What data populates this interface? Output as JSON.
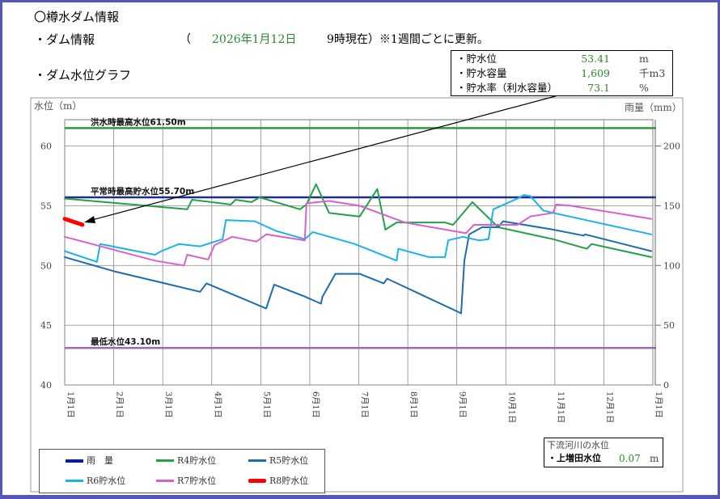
{
  "header": {
    "title": "〇樽水ダム情報",
    "dam_info_label": "・ダム情報",
    "paren_open": "（",
    "date": "2026年1月12日",
    "time_note": "9時現在）※1週間ごとに更新。",
    "graph_label": "・ダム水位グラフ"
  },
  "info_box": {
    "rows": [
      {
        "label": "・貯水位",
        "value": "53.41",
        "unit": "m"
      },
      {
        "label": "・貯水容量",
        "value": "1,609",
        "unit": "千m3"
      },
      {
        "label": "・貯水率（利水容量）",
        "value": "73.1",
        "unit": "%"
      }
    ]
  },
  "downstream": {
    "title": "下流河川の水位",
    "label": "・上増田水位",
    "value": "0.07",
    "unit": "m"
  },
  "chart_data": {
    "type": "line",
    "ylabel_left": "水位（m）",
    "ylabel_right": "雨量（mm）",
    "ylim": [
      40,
      62.2
    ],
    "y_ticks": [
      40,
      45,
      50,
      55,
      60
    ],
    "y2lim": [
      0,
      222
    ],
    "y2_ticks": [
      0,
      50,
      100,
      150,
      200
    ],
    "x_ticks": [
      "1月1日",
      "2月1日",
      "3月1日",
      "4月1日",
      "5月1日",
      "6月1日",
      "7月1日",
      "8月1日",
      "9月1日",
      "10月1日",
      "11月1日",
      "12月1日",
      "1月1日"
    ],
    "grid": true,
    "reference_lines": [
      {
        "label": "洪水時最高水位61.50m",
        "value": 61.5,
        "color": "#2e9a3a"
      },
      {
        "label": "平常時最高貯水位55.70m",
        "value": 55.7,
        "color": "#1f2d8a"
      },
      {
        "label": "最低水位43.10m",
        "value": 43.1,
        "color": "#9a6cb8"
      }
    ],
    "annotation_arrow": "info box → R8 current value",
    "series": [
      {
        "name": "雨　量",
        "color": "#0a1aa0",
        "points": []
      },
      {
        "name": "R4貯水位",
        "color": "#22a04a",
        "points": [
          [
            "01-01",
            55.6
          ],
          [
            "03-18",
            54.7
          ],
          [
            "03-21",
            55.5
          ],
          [
            "04-14",
            55.1
          ],
          [
            "04-17",
            55.5
          ],
          [
            "04-27",
            55.3
          ],
          [
            "05-02",
            55.7
          ],
          [
            "05-27",
            54.7
          ],
          [
            "05-31",
            55.1
          ],
          [
            "06-06",
            56.8
          ],
          [
            "06-14",
            54.4
          ],
          [
            "07-03",
            54.1
          ],
          [
            "07-14",
            56.4
          ],
          [
            "07-19",
            53.0
          ],
          [
            "07-26",
            53.6
          ],
          [
            "08-25",
            53.6
          ],
          [
            "08-30",
            53.4
          ],
          [
            "09-11",
            55.3
          ],
          [
            "09-27",
            53.2
          ],
          [
            "10-31",
            52.2
          ],
          [
            "11-21",
            51.4
          ],
          [
            "11-24",
            51.8
          ],
          [
            "12-31",
            50.7
          ]
        ]
      },
      {
        "name": "R5貯水位",
        "color": "#1f6bb0",
        "points": [
          [
            "01-01",
            50.7
          ],
          [
            "02-01",
            49.5
          ],
          [
            "03-01",
            48.6
          ],
          [
            "03-26",
            47.8
          ],
          [
            "03-30",
            48.5
          ],
          [
            "05-06",
            46.4
          ],
          [
            "05-11",
            48.4
          ],
          [
            "05-30",
            47.4
          ],
          [
            "06-09",
            46.8
          ],
          [
            "06-10",
            47.4
          ],
          [
            "06-18",
            49.3
          ],
          [
            "07-03",
            49.3
          ],
          [
            "07-18",
            48.5
          ],
          [
            "07-20",
            48.9
          ],
          [
            "09-04",
            46.0
          ],
          [
            "09-06",
            50.4
          ],
          [
            "09-09",
            52.6
          ],
          [
            "09-17",
            53.2
          ],
          [
            "09-27",
            53.2
          ],
          [
            "09-30",
            53.7
          ],
          [
            "10-31",
            53.0
          ],
          [
            "11-19",
            52.5
          ],
          [
            "11-20",
            52.6
          ],
          [
            "12-31",
            51.2
          ]
        ]
      },
      {
        "name": "R6貯水位",
        "color": "#1ab2e8",
        "points": [
          [
            "01-01",
            51.2
          ],
          [
            "01-21",
            50.3
          ],
          [
            "01-23",
            51.8
          ],
          [
            "02-26",
            50.9
          ],
          [
            "03-02",
            51.2
          ],
          [
            "03-13",
            51.8
          ],
          [
            "03-26",
            51.6
          ],
          [
            "04-09",
            52.2
          ],
          [
            "04-11",
            53.8
          ],
          [
            "04-29",
            53.7
          ],
          [
            "05-12",
            52.9
          ],
          [
            "05-30",
            52.2
          ],
          [
            "06-04",
            52.8
          ],
          [
            "06-30",
            51.8
          ],
          [
            "07-26",
            50.4
          ],
          [
            "07-27",
            51.4
          ],
          [
            "08-15",
            50.7
          ],
          [
            "08-25",
            50.7
          ],
          [
            "08-27",
            52.1
          ],
          [
            "09-05",
            52.4
          ],
          [
            "09-15",
            52.1
          ],
          [
            "09-21",
            52.2
          ],
          [
            "09-24",
            54.7
          ],
          [
            "10-09",
            55.6
          ],
          [
            "10-13",
            55.9
          ],
          [
            "10-17",
            55.8
          ],
          [
            "10-25",
            54.6
          ],
          [
            "10-31",
            54.4
          ],
          [
            "12-31",
            52.6
          ]
        ]
      },
      {
        "name": "R7貯水位",
        "color": "#d860cc",
        "points": [
          [
            "01-01",
            52.4
          ],
          [
            "02-26",
            50.4
          ],
          [
            "03-16",
            50.0
          ],
          [
            "03-18",
            50.9
          ],
          [
            "03-31",
            50.5
          ],
          [
            "04-04",
            51.7
          ],
          [
            "04-15",
            52.4
          ],
          [
            "04-30",
            52.0
          ],
          [
            "05-06",
            52.6
          ],
          [
            "05-30",
            52.1
          ],
          [
            "05-31",
            55.2
          ],
          [
            "06-14",
            55.4
          ],
          [
            "07-03",
            55.0
          ],
          [
            "07-31",
            53.6
          ],
          [
            "09-07",
            52.7
          ],
          [
            "09-12",
            53.4
          ],
          [
            "10-09",
            53.4
          ],
          [
            "10-17",
            54.1
          ],
          [
            "10-31",
            54.4
          ],
          [
            "11-02",
            55.1
          ],
          [
            "11-11",
            55.0
          ],
          [
            "12-31",
            53.9
          ]
        ]
      },
      {
        "name": "R8貯水位",
        "color": "#ff0000",
        "points": [
          [
            "01-01",
            53.9
          ],
          [
            "01-12",
            53.41
          ]
        ]
      }
    ]
  }
}
